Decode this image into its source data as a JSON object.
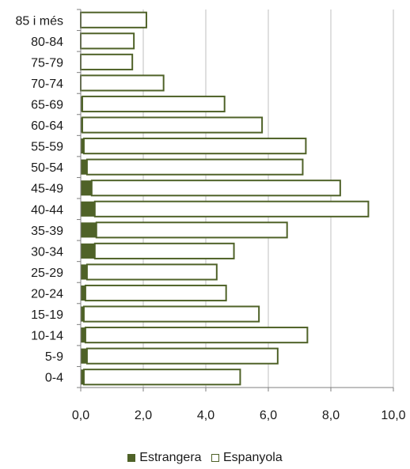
{
  "chart_data": {
    "type": "bar",
    "orientation": "horizontal",
    "stacked": true,
    "categories": [
      "0-4",
      "5-9",
      "10-14",
      "15-19",
      "20-24",
      "25-29",
      "30-34",
      "35-39",
      "40-44",
      "45-49",
      "50-54",
      "55-59",
      "60-64",
      "65-69",
      "70-74",
      "75-79",
      "80-84",
      "85 i més"
    ],
    "series": [
      {
        "name": "Estrangera",
        "color": "#4f6228",
        "values": [
          0.1,
          0.2,
          0.15,
          0.1,
          0.15,
          0.2,
          0.45,
          0.5,
          0.45,
          0.35,
          0.2,
          0.1,
          0.05,
          0.05,
          0.0,
          0.0,
          0.0,
          0.0
        ]
      },
      {
        "name": "Espanyola",
        "color": "#ffffff",
        "values": [
          5.0,
          6.1,
          7.1,
          5.6,
          4.5,
          4.15,
          4.45,
          6.1,
          8.75,
          7.95,
          6.9,
          7.1,
          5.75,
          4.55,
          2.65,
          1.65,
          1.7,
          2.1
        ]
      }
    ],
    "xlim": [
      0,
      10
    ],
    "xticks": [
      "0,0",
      "2,0",
      "4,0",
      "6,0",
      "8,0",
      "10,0"
    ],
    "grid": true,
    "legend_position": "bottom"
  }
}
